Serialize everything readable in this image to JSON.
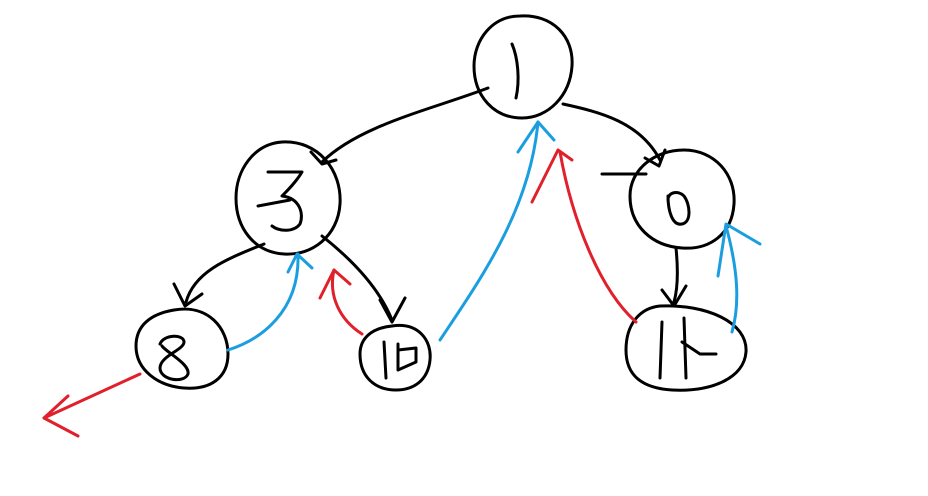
{
  "diagram": {
    "type": "binary-tree-traversal-sketch",
    "colors": {
      "tree": "#000000",
      "traversal_blue": "#1a9ee0",
      "traversal_red": "#e0202a",
      "background": "#ffffff"
    },
    "nodes": [
      {
        "id": "n1",
        "glyph": "1"
      },
      {
        "id": "n3",
        "glyph": "3"
      },
      {
        "id": "n6",
        "glyph": "6"
      },
      {
        "id": "n8",
        "glyph": "8"
      },
      {
        "id": "n10",
        "glyph": "10"
      },
      {
        "id": "n14",
        "glyph": "14"
      }
    ],
    "edges": [
      {
        "from": "n1",
        "to": "n3",
        "color": "tree"
      },
      {
        "from": "n1",
        "to": "n6",
        "color": "tree"
      },
      {
        "from": "n3",
        "to": "n8",
        "color": "tree"
      },
      {
        "from": "n3",
        "to": "n10",
        "color": "tree"
      },
      {
        "from": "n6",
        "to": "n14",
        "color": "tree"
      }
    ],
    "return_arrows": [
      {
        "from": "n8",
        "to": "n3",
        "color": "traversal_blue"
      },
      {
        "from": "n10",
        "to": "n3",
        "color": "traversal_red"
      },
      {
        "from": "n10",
        "to": "n1",
        "color": "traversal_blue"
      },
      {
        "from": "n14",
        "to": "n1",
        "color": "traversal_red"
      },
      {
        "from": "n14",
        "to": "n6",
        "color": "traversal_blue"
      },
      {
        "from": "n8",
        "to": "outside",
        "color": "traversal_red"
      }
    ]
  }
}
